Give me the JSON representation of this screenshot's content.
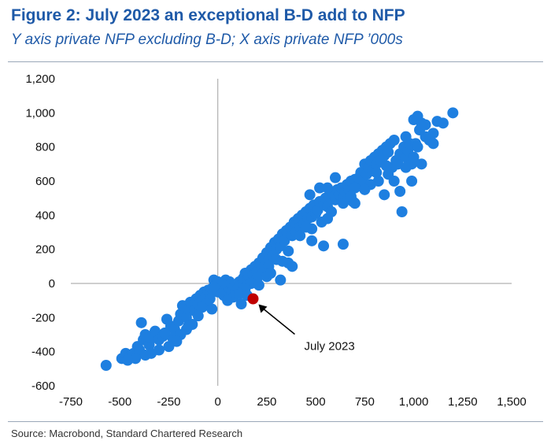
{
  "title": "Figure 2: July 2023 an exceptional B-D add to NFP",
  "subtitle": "Y axis private NFP excluding B-D; X axis private NFP ’000s",
  "source": "Source: Macrobond, Standard Chartered Research",
  "colors": {
    "title": "#1f5aa8",
    "points": "#1e7fe0",
    "highlight": "#c00000",
    "axis": "#b0b0b0"
  },
  "chart_data": {
    "type": "scatter",
    "title": "Figure 2: July 2023 an exceptional B-D add to NFP",
    "subtitle": "Y axis private NFP excluding B-D; X axis private NFP ’000s",
    "xlabel": "",
    "ylabel": "",
    "xlim": [
      -750,
      1500
    ],
    "ylim": [
      -600,
      1200
    ],
    "xticks": [
      "-750",
      "-500",
      "-250",
      "0",
      "250",
      "500",
      "750",
      "1,000",
      "1,250",
      "1,500"
    ],
    "yticks": [
      "1,200",
      "1,000",
      "800",
      "600",
      "400",
      "200",
      "0",
      "-200",
      "-400",
      "-600"
    ],
    "grid": false,
    "legend": "none",
    "annotation": {
      "text": "July 2023",
      "x": 180,
      "y": -90
    },
    "highlight_point": {
      "name": "July 2023",
      "x": 180,
      "y": -90
    },
    "series": [
      {
        "points": [
          [
            -570,
            -480
          ],
          [
            -490,
            -440
          ],
          [
            -470,
            -410
          ],
          [
            -450,
            -430
          ],
          [
            -430,
            -410
          ],
          [
            -410,
            -370
          ],
          [
            -400,
            -390
          ],
          [
            -390,
            -230
          ],
          [
            -380,
            -330
          ],
          [
            -370,
            -300
          ],
          [
            -350,
            -360
          ],
          [
            -340,
            -320
          ],
          [
            -320,
            -280
          ],
          [
            -300,
            -330
          ],
          [
            -280,
            -310
          ],
          [
            -260,
            -210
          ],
          [
            -240,
            -250
          ],
          [
            -230,
            -320
          ],
          [
            -220,
            -270
          ],
          [
            -200,
            -220
          ],
          [
            -190,
            -180
          ],
          [
            -180,
            -130
          ],
          [
            -160,
            -200
          ],
          [
            -150,
            -150
          ],
          [
            -140,
            -110
          ],
          [
            -120,
            -160
          ],
          [
            -110,
            -90
          ],
          [
            -100,
            -120
          ],
          [
            -90,
            -70
          ],
          [
            -80,
            -100
          ],
          [
            -70,
            -50
          ],
          [
            -60,
            -80
          ],
          [
            -50,
            -40
          ],
          [
            -40,
            -60
          ],
          [
            -30,
            -30
          ],
          [
            -20,
            20
          ],
          [
            -10,
            -10
          ],
          [
            0,
            -50
          ],
          [
            10,
            -20
          ],
          [
            20,
            -40
          ],
          [
            30,
            -70
          ],
          [
            40,
            -40
          ],
          [
            50,
            -10
          ],
          [
            60,
            -30
          ],
          [
            70,
            -50
          ],
          [
            80,
            -80
          ],
          [
            90,
            -40
          ],
          [
            100,
            -20
          ],
          [
            110,
            10
          ],
          [
            120,
            -10
          ],
          [
            130,
            30
          ],
          [
            140,
            60
          ],
          [
            150,
            20
          ],
          [
            160,
            40
          ],
          [
            170,
            80
          ],
          [
            180,
            50
          ],
          [
            190,
            100
          ],
          [
            200,
            70
          ],
          [
            210,
            120
          ],
          [
            220,
            110
          ],
          [
            230,
            150
          ],
          [
            240,
            100
          ],
          [
            250,
            180
          ],
          [
            260,
            140
          ],
          [
            270,
            210
          ],
          [
            280,
            160
          ],
          [
            290,
            240
          ],
          [
            300,
            200
          ],
          [
            310,
            260
          ],
          [
            320,
            220
          ],
          [
            330,
            290
          ],
          [
            340,
            250
          ],
          [
            350,
            310
          ],
          [
            360,
            190
          ],
          [
            370,
            330
          ],
          [
            380,
            280
          ],
          [
            390,
            360
          ],
          [
            400,
            300
          ],
          [
            410,
            380
          ],
          [
            420,
            330
          ],
          [
            430,
            400
          ],
          [
            440,
            350
          ],
          [
            450,
            420
          ],
          [
            460,
            380
          ],
          [
            470,
            440
          ],
          [
            480,
            390
          ],
          [
            490,
            460
          ],
          [
            500,
            410
          ],
          [
            510,
            430
          ],
          [
            520,
            480
          ],
          [
            530,
            360
          ],
          [
            540,
            470
          ],
          [
            550,
            500
          ],
          [
            560,
            450
          ],
          [
            570,
            510
          ],
          [
            580,
            420
          ],
          [
            590,
            520
          ],
          [
            600,
            490
          ],
          [
            610,
            550
          ],
          [
            620,
            520
          ],
          [
            630,
            560
          ],
          [
            640,
            500
          ],
          [
            650,
            540
          ],
          [
            660,
            580
          ],
          [
            670,
            550
          ],
          [
            680,
            600
          ],
          [
            690,
            480
          ],
          [
            700,
            610
          ],
          [
            710,
            570
          ],
          [
            720,
            620
          ],
          [
            730,
            650
          ],
          [
            740,
            600
          ],
          [
            750,
            700
          ],
          [
            760,
            640
          ],
          [
            770,
            680
          ],
          [
            780,
            720
          ],
          [
            790,
            660
          ],
          [
            800,
            740
          ],
          [
            810,
            700
          ],
          [
            820,
            760
          ],
          [
            830,
            720
          ],
          [
            840,
            780
          ],
          [
            850,
            750
          ],
          [
            860,
            800
          ],
          [
            870,
            770
          ],
          [
            880,
            820
          ],
          [
            890,
            680
          ],
          [
            900,
            840
          ],
          [
            910,
            720
          ],
          [
            920,
            700
          ],
          [
            930,
            760
          ],
          [
            940,
            420
          ],
          [
            950,
            800
          ],
          [
            960,
            740
          ],
          [
            970,
            780
          ],
          [
            980,
            820
          ],
          [
            990,
            700
          ],
          [
            1000,
            960
          ],
          [
            1010,
            820
          ],
          [
            1020,
            980
          ],
          [
            1030,
            900
          ],
          [
            1040,
            940
          ],
          [
            1060,
            930
          ],
          [
            1080,
            840
          ],
          [
            1100,
            880
          ],
          [
            1120,
            950
          ],
          [
            1200,
            1000
          ],
          [
            1000,
            740
          ],
          [
            960,
            680
          ],
          [
            870,
            640
          ],
          [
            820,
            600
          ],
          [
            780,
            580
          ],
          [
            700,
            560
          ],
          [
            640,
            470
          ],
          [
            560,
            380
          ],
          [
            480,
            320
          ],
          [
            420,
            280
          ],
          [
            360,
            120
          ],
          [
            300,
            140
          ],
          [
            260,
            100
          ],
          [
            230,
            60
          ],
          [
            200,
            30
          ],
          [
            170,
            0
          ],
          [
            140,
            -30
          ],
          [
            110,
            -60
          ],
          [
            80,
            -10
          ],
          [
            60,
            10
          ],
          [
            40,
            20
          ],
          [
            20,
            0
          ],
          [
            0,
            10
          ],
          [
            -20,
            -20
          ],
          [
            -40,
            -90
          ],
          [
            -60,
            -120
          ],
          [
            -80,
            -140
          ],
          [
            -100,
            -190
          ],
          [
            -130,
            -240
          ],
          [
            -160,
            -270
          ],
          [
            -190,
            -300
          ],
          [
            -210,
            -340
          ],
          [
            -250,
            -370
          ],
          [
            -300,
            -390
          ],
          [
            -340,
            -410
          ],
          [
            -370,
            -420
          ],
          [
            -420,
            -440
          ],
          [
            -460,
            -450
          ],
          [
            540,
            220
          ],
          [
            480,
            250
          ],
          [
            450,
            330
          ],
          [
            640,
            230
          ],
          [
            380,
            100
          ],
          [
            320,
            20
          ],
          [
            600,
            620
          ],
          [
            560,
            560
          ],
          [
            520,
            560
          ],
          [
            470,
            520
          ],
          [
            250,
            40
          ],
          [
            150,
            -70
          ],
          [
            700,
            470
          ],
          [
            680,
            510
          ],
          [
            750,
            550
          ],
          [
            810,
            650
          ],
          [
            860,
            690
          ],
          [
            900,
            600
          ],
          [
            960,
            860
          ],
          [
            1020,
            800
          ],
          [
            1060,
            860
          ],
          [
            1150,
            940
          ],
          [
            1100,
            820
          ],
          [
            1040,
            700
          ],
          [
            990,
            600
          ],
          [
            930,
            540
          ],
          [
            850,
            520
          ],
          [
            330,
            130
          ],
          [
            270,
            60
          ],
          [
            210,
            -10
          ],
          [
            120,
            -120
          ],
          [
            50,
            -100
          ],
          [
            -30,
            -150
          ],
          [
            -150,
            -250
          ],
          [
            -270,
            -290
          ]
        ]
      }
    ]
  }
}
